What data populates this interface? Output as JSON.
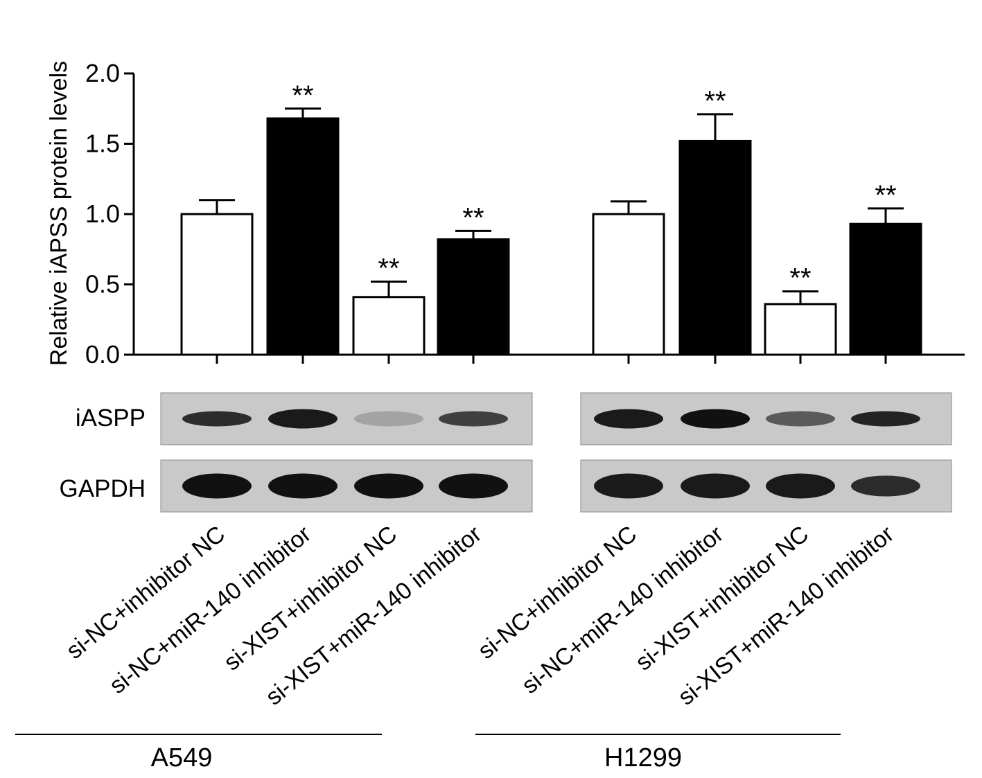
{
  "chart_data": {
    "type": "bar",
    "ylabel": "Relative iAPSS protein levels",
    "ylim": [
      0,
      2.0
    ],
    "yticks": [
      "0.0",
      "0.5",
      "1.0",
      "1.5",
      "2.0"
    ],
    "categories": [
      "si-NC+inhibitor NC",
      "si-NC+miR-140 inhibitor",
      "si-XIST+inhibitor NC",
      "si-XIST+miR-140 inhibitor"
    ],
    "groups": [
      {
        "name": "A549",
        "values": [
          1.0,
          1.68,
          0.41,
          0.82
        ],
        "errors": [
          0.1,
          0.07,
          0.11,
          0.06
        ],
        "significance": [
          "",
          "**",
          "**",
          "**"
        ]
      },
      {
        "name": "H1299",
        "values": [
          1.0,
          1.52,
          0.36,
          0.93
        ],
        "errors": [
          0.09,
          0.19,
          0.09,
          0.11
        ],
        "significance": [
          "",
          "**",
          "**",
          "**"
        ]
      }
    ],
    "bar_fills": [
      "#ffffff",
      "#000000",
      "#ffffff",
      "#000000"
    ],
    "significance_marker": "**"
  },
  "blot": {
    "rows": [
      "iASPP",
      "GAPDH"
    ],
    "intensity": {
      "A549": {
        "iASPP": [
          0.85,
          0.95,
          0.2,
          0.75
        ],
        "GAPDH": [
          1.0,
          1.0,
          1.0,
          1.0
        ]
      },
      "H1299": {
        "iASPP": [
          0.95,
          1.0,
          0.6,
          0.9
        ],
        "GAPDH": [
          0.95,
          0.95,
          0.95,
          0.85
        ]
      }
    }
  },
  "colors": {
    "ink": "#000000",
    "bar_white": "#ffffff",
    "bar_black": "#000000",
    "blot_background": "#c9c9c9",
    "band": "#111111"
  }
}
